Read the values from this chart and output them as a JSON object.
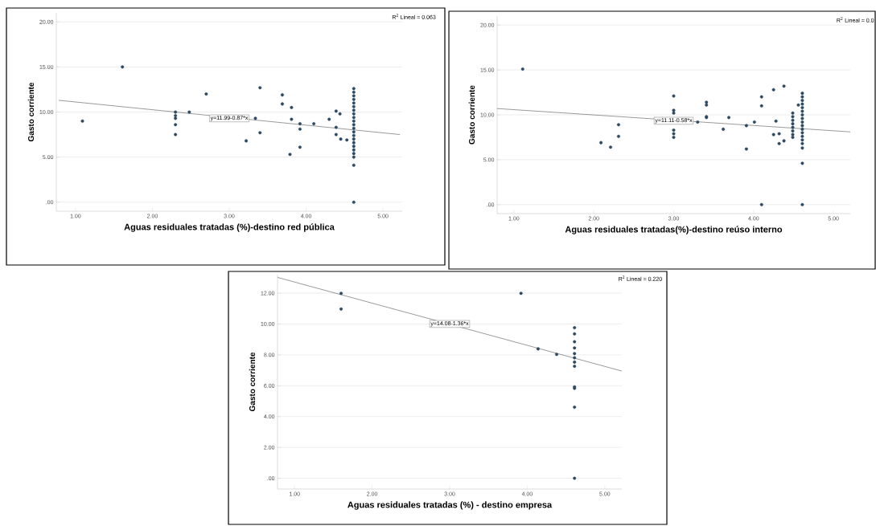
{
  "chart_data": [
    {
      "type": "scatter",
      "xlabel": "Aguas residuales tratadas (%)-destino red pública",
      "ylabel": "Gasto corriente",
      "xlim": [
        0.75,
        5.25
      ],
      "ylim": [
        -1,
        21
      ],
      "grid": "y",
      "xticks": [
        {
          "value": 1,
          "label": "1.00"
        },
        {
          "value": 2,
          "label": "2.00"
        },
        {
          "value": 3,
          "label": "3.00"
        },
        {
          "value": 4,
          "label": "4.00"
        },
        {
          "value": 5,
          "label": "5.00"
        }
      ],
      "yticks": [
        {
          "value": 0,
          "label": ".00"
        },
        {
          "value": 5,
          "label": "5.00"
        },
        {
          "value": 10,
          "label": "10.00"
        },
        {
          "value": 15,
          "label": "15.00"
        },
        {
          "value": 20,
          "label": "20.00"
        }
      ],
      "series": [
        {
          "marker": "circle",
          "color": "#2e4a62",
          "x": [
            1.61,
            1.09,
            2.3,
            2.3,
            2.3,
            2.3,
            2.3,
            2.48,
            2.7,
            3.22,
            3.34,
            3.4,
            3.4,
            3.69,
            3.69,
            3.81,
            3.81,
            3.79,
            3.92,
            3.92,
            3.92,
            4.1,
            4.3,
            4.39,
            4.44,
            4.39,
            4.39,
            4.45,
            4.53,
            4.62,
            4.62,
            4.62,
            4.62,
            4.62,
            4.62,
            4.62,
            4.62,
            4.62,
            4.62,
            4.62,
            4.62,
            4.62,
            4.62,
            4.62,
            4.62,
            4.62,
            4.62,
            4.62,
            4.62,
            4.62,
            4.62
          ],
          "values": [
            15.0,
            9.0,
            10.0,
            9.6,
            9.3,
            8.6,
            7.5,
            10.0,
            12.0,
            6.8,
            9.3,
            12.7,
            7.7,
            11.9,
            10.9,
            10.5,
            9.2,
            5.3,
            8.7,
            8.1,
            6.1,
            8.7,
            9.2,
            10.1,
            9.8,
            8.3,
            7.5,
            7.0,
            6.9,
            12.6,
            12.2,
            11.8,
            11.4,
            11.0,
            10.6,
            10.2,
            9.8,
            9.4,
            9.0,
            8.6,
            8.2,
            7.8,
            7.4,
            7.0,
            6.6,
            6.2,
            5.8,
            5.4,
            5.0,
            4.1,
            0
          ]
        },
        {
          "type": "line",
          "marker": "none",
          "color": "#555555",
          "x": [
            0.78,
            5.22
          ],
          "values": [
            11.3,
            7.5
          ]
        }
      ],
      "annotations": [
        "y=11.99-0.87*x",
        "R$^{2}$ Lineal = 0.063"
      ]
    },
    {
      "type": "scatter",
      "xlabel": "Aguas residuales tratadas(%)-destino reúso interno",
      "ylabel": "Gasto corriente",
      "xlim": [
        0.79,
        5.21
      ],
      "ylim": [
        -1,
        21
      ],
      "grid": "y",
      "xticks": [
        {
          "value": 1,
          "label": "1.00"
        },
        {
          "value": 2,
          "label": "2.00"
        },
        {
          "value": 3,
          "label": "3.00"
        },
        {
          "value": 4,
          "label": "4.00"
        },
        {
          "value": 5,
          "label": "5.00"
        }
      ],
      "yticks": [
        {
          "value": 0,
          "label": ".00"
        },
        {
          "value": 5,
          "label": "5.00"
        },
        {
          "value": 10,
          "label": "10.00"
        },
        {
          "value": 15,
          "label": "15.00"
        },
        {
          "value": 20,
          "label": "20.00"
        }
      ],
      "series": [
        {
          "marker": "circle",
          "color": "#2e4a62",
          "x": [
            1.11,
            2.09,
            2.21,
            2.31,
            2.31,
            3.0,
            3.0,
            3.0,
            3.0,
            3.0,
            3.0,
            3.3,
            3.41,
            3.41,
            3.41,
            3.41,
            3.62,
            3.69,
            3.91,
            3.91,
            4.01,
            4.1,
            4.1,
            4.1,
            4.25,
            4.28,
            4.25,
            4.32,
            4.32,
            4.38,
            4.38,
            4.49,
            4.49,
            4.49,
            4.49,
            4.49,
            4.49,
            4.49,
            4.49,
            4.56,
            4.61,
            4.61,
            4.61,
            4.61,
            4.61,
            4.61,
            4.61,
            4.61,
            4.61,
            4.61,
            4.61,
            4.61,
            4.61,
            4.61,
            4.61,
            4.61,
            4.61,
            4.61
          ],
          "values": [
            15.1,
            6.9,
            6.4,
            8.9,
            7.6,
            12.1,
            10.5,
            10.2,
            8.3,
            7.9,
            7.5,
            9.2,
            11.4,
            11.1,
            9.8,
            9.7,
            8.4,
            9.7,
            8.8,
            6.2,
            9.2,
            12.0,
            11.0,
            0,
            12.8,
            9.3,
            7.8,
            7.9,
            6.8,
            13.2,
            7.1,
            10.2,
            9.8,
            9.4,
            9.0,
            8.6,
            8.2,
            7.8,
            7.5,
            11.1,
            12.4,
            12.0,
            11.6,
            11.2,
            10.8,
            10.4,
            10.0,
            9.6,
            9.2,
            8.8,
            8.4,
            8.0,
            7.6,
            7.2,
            6.8,
            6.3,
            4.6,
            0
          ]
        },
        {
          "type": "line",
          "marker": "none",
          "color": "#555555",
          "x": [
            0.79,
            5.21
          ],
          "values": [
            10.7,
            8.1
          ]
        }
      ],
      "annotations": [
        "y=11.11-0.58*x",
        "R$^{2}$ Lineal = 0.0"
      ]
    },
    {
      "type": "scatter",
      "xlabel": "Aguas residuales tratadas (%) - destino empresa",
      "ylabel": "Gasto corriente",
      "xlim": [
        0.78,
        5.22
      ],
      "ylim": [
        -0.7,
        13.2
      ],
      "grid": "y",
      "xticks": [
        {
          "value": 1,
          "label": "1.00"
        },
        {
          "value": 2,
          "label": "2.00"
        },
        {
          "value": 3,
          "label": "3.00"
        },
        {
          "value": 4,
          "label": "4.00"
        },
        {
          "value": 5,
          "label": "5.00"
        }
      ],
      "yticks": [
        {
          "value": 0,
          "label": ".00"
        },
        {
          "value": 2,
          "label": "2.00"
        },
        {
          "value": 4,
          "label": "4.00"
        },
        {
          "value": 6,
          "label": "6.00"
        },
        {
          "value": 8,
          "label": "8.00"
        },
        {
          "value": 10,
          "label": "10.00"
        },
        {
          "value": 12,
          "label": "12.00"
        }
      ],
      "series": [
        {
          "marker": "circle",
          "color": "#2e4a62",
          "x": [
            1.6,
            1.6,
            3.92,
            4.14,
            4.38,
            4.61,
            4.61,
            4.61,
            4.61,
            4.61,
            4.61,
            4.61,
            4.61,
            4.61,
            4.61,
            4.61,
            4.61
          ],
          "values": [
            11.99,
            10.97,
            11.99,
            8.39,
            8.03,
            9.76,
            9.36,
            8.85,
            8.45,
            8.08,
            7.81,
            7.53,
            7.26,
            5.92,
            5.83,
            4.61,
            0
          ]
        },
        {
          "type": "line",
          "marker": "none",
          "color": "#555555",
          "x": [
            0.78,
            5.22
          ],
          "values": [
            13.02,
            6.95
          ]
        }
      ],
      "annotations": [
        "y=14.08-1.36*x",
        "R$^{2}$ Lineal = 0.220"
      ]
    }
  ]
}
